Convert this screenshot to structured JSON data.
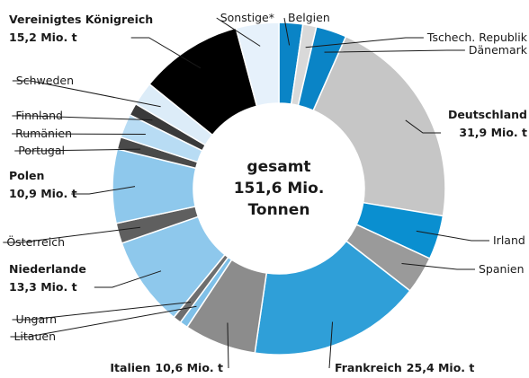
{
  "chart_data": {
    "type": "donut",
    "center_label": [
      "gesamt",
      "151,6 Mio.",
      "Tonnen"
    ],
    "categories": [
      "Belgien",
      "Tschech. Republik",
      "Dänemark",
      "Deutschland",
      "Irland",
      "Spanien",
      "Frankreich",
      "Italien",
      "Litauen",
      "Ungarn",
      "Niederlande",
      "Österreich",
      "Polen",
      "Portugal",
      "Rumänien",
      "Finnland",
      "Schweden",
      "Vereinigtes Königreich",
      "Sonstige*"
    ],
    "values": [
      3.5,
      2.0,
      4.5,
      31.9,
      6.5,
      5.5,
      25.4,
      10.6,
      1.2,
      1.2,
      13.3,
      3.0,
      10.9,
      1.8,
      3.5,
      1.8,
      3.5,
      15.2,
      6.3
    ],
    "value_labels": [
      null,
      null,
      null,
      "31,9 Mio. t",
      null,
      null,
      "25,4 Mio. t",
      "10,6 Mio. t",
      null,
      null,
      "13,3 Mio. t",
      null,
      "10,9 Mio. t",
      null,
      null,
      null,
      null,
      "15,2 Mio. t",
      null
    ],
    "colors": [
      "#0a84c6",
      "#d9d9d9",
      "#0a84c6",
      "#c6c6c6",
      "#0a8fd0",
      "#9a9a9a",
      "#2f9fd8",
      "#8c8c8c",
      "#7fc0e8",
      "#6e6e6e",
      "#8ec8ec",
      "#5f5f5f",
      "#8ec8ec",
      "#4a4a4a",
      "#b8dcf4",
      "#3a3a3a",
      "#dcecf8",
      "#000000",
      "#e6f1fb"
    ]
  }
}
